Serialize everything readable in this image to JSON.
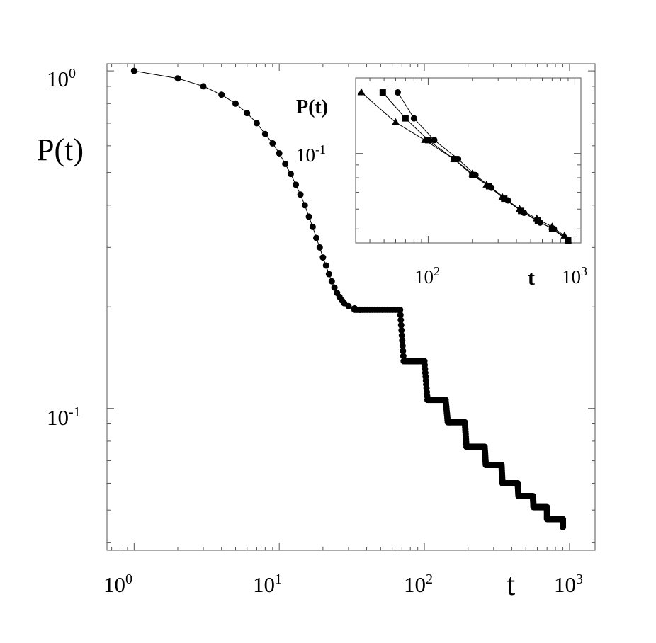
{
  "chart_data": [
    {
      "type": "scatter",
      "title": "",
      "xlabel": "t",
      "ylabel": "P(t)",
      "xscale": "log",
      "yscale": "log",
      "xlim": [
        0.65,
        1500
      ],
      "ylim": [
        0.038,
        1.05
      ],
      "xticks": [
        {
          "base": "10",
          "exp": "0",
          "value": 1
        },
        {
          "base": "10",
          "exp": "1",
          "value": 10
        },
        {
          "base": "10",
          "exp": "2",
          "value": 100
        },
        {
          "base": "10",
          "exp": "3",
          "value": 1000
        }
      ],
      "yticks": [
        {
          "base": "10",
          "exp": "0",
          "value": 1
        },
        {
          "base": "10",
          "exp": "-1",
          "value": 0.1
        }
      ],
      "grid": false,
      "marker": "circle",
      "series": [
        {
          "early_points": [
            [
              1,
              1.0
            ],
            [
              2,
              0.95
            ],
            [
              3,
              0.9
            ],
            [
              4,
              0.85
            ],
            [
              5,
              0.8
            ],
            [
              6,
              0.75
            ],
            [
              7,
              0.7
            ],
            [
              8,
              0.65
            ],
            [
              9,
              0.61
            ],
            [
              10,
              0.57
            ],
            [
              11,
              0.53
            ],
            [
              12,
              0.495
            ],
            [
              13,
              0.46
            ],
            [
              14,
              0.43
            ],
            [
              15,
              0.4
            ],
            [
              16,
              0.37
            ],
            [
              17,
              0.345
            ],
            [
              18,
              0.32
            ],
            [
              19,
              0.3
            ],
            [
              20,
              0.28
            ],
            [
              21,
              0.265
            ],
            [
              22,
              0.25
            ],
            [
              23,
              0.238
            ],
            [
              24,
              0.228
            ],
            [
              25,
              0.22
            ],
            [
              26,
              0.214
            ],
            [
              27,
              0.209
            ],
            [
              28,
              0.205
            ],
            [
              30,
              0.201
            ],
            [
              33,
              0.198
            ],
            [
              36,
              0.196
            ]
          ],
          "steps": [
            [
              33,
              68,
              0.196
            ],
            [
              72,
              100,
              0.138
            ],
            [
              105,
              140,
              0.106
            ],
            [
              145,
              190,
              0.091
            ],
            [
              195,
              260,
              0.077
            ],
            [
              265,
              340,
              0.068
            ],
            [
              345,
              440,
              0.06
            ],
            [
              445,
              560,
              0.055
            ],
            [
              565,
              700,
              0.051
            ],
            [
              700,
              900,
              0.047
            ]
          ],
          "last_point": [
            900,
            0.0445
          ]
        }
      ]
    },
    {
      "type": "line",
      "title": "",
      "xlabel": "t",
      "ylabel": "P(t)",
      "xscale": "log",
      "yscale": "log",
      "xlim": [
        32,
        1100
      ],
      "ylim": [
        0.044,
        0.2
      ],
      "xticks": [
        {
          "base": "10",
          "exp": "2",
          "value": 100
        },
        {
          "base": "10",
          "exp": "3",
          "value": 1000
        }
      ],
      "yticks": [
        {
          "base": "10",
          "exp": "-1",
          "value": 0.1
        }
      ],
      "grid": false,
      "series": [
        {
          "marker": "triangle",
          "points": [
            [
              35,
              0.175
            ],
            [
              60,
              0.133
            ],
            [
              95,
              0.113
            ],
            [
              150,
              0.095
            ],
            [
              200,
              0.083
            ],
            [
              250,
              0.075
            ],
            [
              320,
              0.067
            ],
            [
              420,
              0.06
            ],
            [
              550,
              0.055
            ],
            [
              700,
              0.051
            ],
            [
              850,
              0.047
            ],
            [
              900,
              0.045
            ]
          ]
        },
        {
          "marker": "square",
          "points": [
            [
              49,
              0.175
            ],
            [
              70,
              0.138
            ],
            [
              100,
              0.113
            ],
            [
              150,
              0.095
            ],
            [
              200,
              0.082
            ],
            [
              260,
              0.074
            ],
            [
              330,
              0.066
            ],
            [
              430,
              0.059
            ],
            [
              560,
              0.054
            ],
            [
              700,
              0.05
            ],
            [
              900,
              0.045
            ]
          ]
        },
        {
          "marker": "circle",
          "points": [
            [
              62,
              0.175
            ],
            [
              80,
              0.138
            ],
            [
              110,
              0.113
            ],
            [
              160,
              0.095
            ],
            [
              210,
              0.082
            ],
            [
              270,
              0.073
            ],
            [
              350,
              0.065
            ],
            [
              450,
              0.058
            ],
            [
              580,
              0.053
            ],
            [
              720,
              0.05
            ],
            [
              900,
              0.045
            ]
          ]
        }
      ]
    }
  ]
}
